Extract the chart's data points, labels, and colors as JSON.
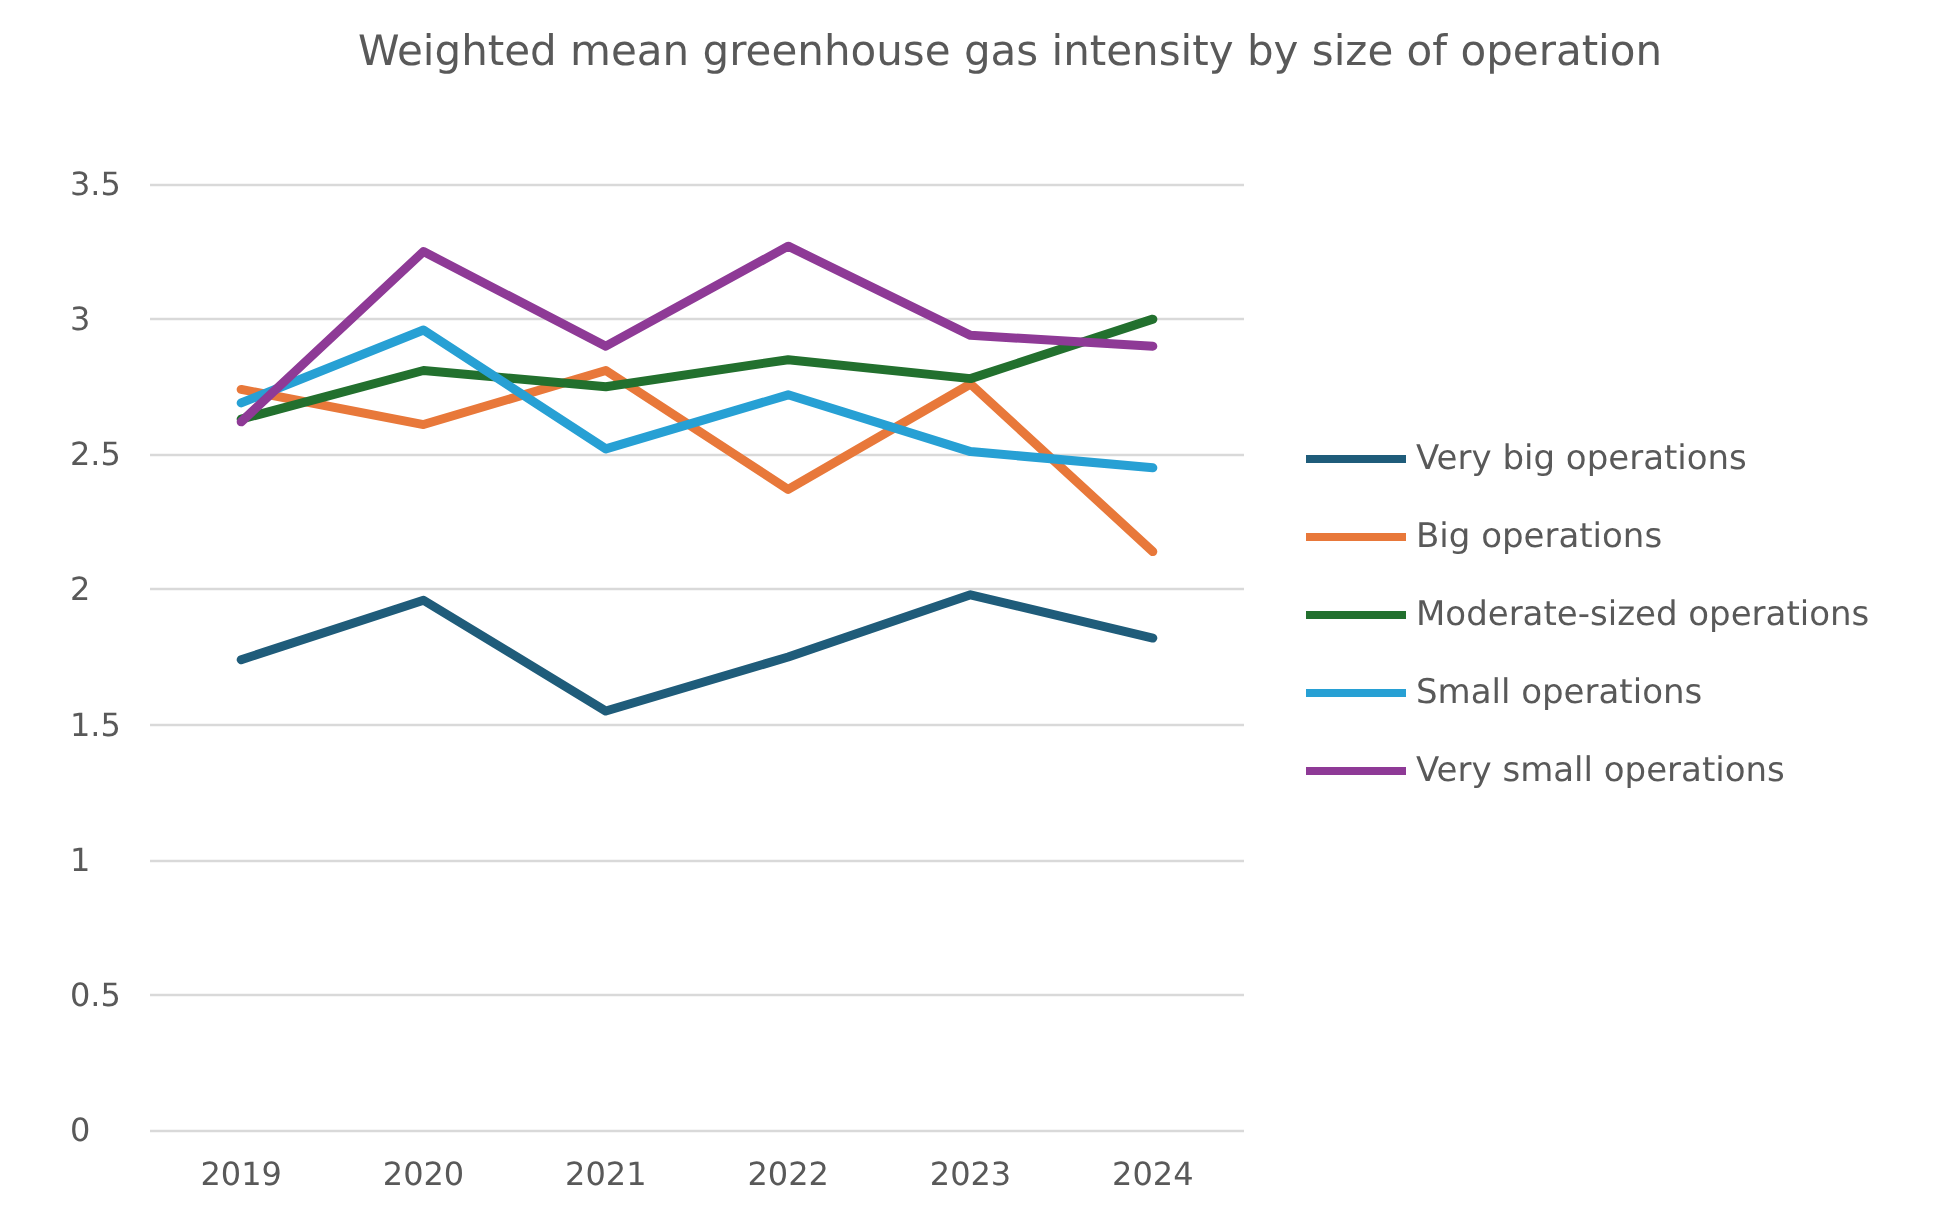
{
  "chart_data": {
    "type": "line",
    "title": "Weighted mean greenhouse gas intensity by size of operation",
    "categories": [
      "2019",
      "2020",
      "2021",
      "2022",
      "2023",
      "2024"
    ],
    "series": [
      {
        "name": "Very big operations",
        "color": "#1f5c7a",
        "values": [
          1.74,
          1.96,
          1.55,
          1.75,
          1.98,
          1.82
        ]
      },
      {
        "name": "Big operations",
        "color": "#e8783a",
        "values": [
          2.74,
          2.61,
          2.81,
          2.37,
          2.76,
          2.14
        ]
      },
      {
        "name": "Moderate-sized operations",
        "color": "#22702e",
        "values": [
          2.63,
          2.81,
          2.75,
          2.85,
          2.78,
          3.0
        ]
      },
      {
        "name": "Small operations",
        "color": "#27a0d4",
        "values": [
          2.69,
          2.96,
          2.52,
          2.72,
          2.51,
          2.45
        ]
      },
      {
        "name": "Very small operations",
        "color": "#8e3a96",
        "values": [
          2.62,
          3.25,
          2.9,
          3.27,
          2.94,
          2.9
        ]
      }
    ],
    "ylim": [
      0,
      3.5
    ],
    "yticks": [
      0,
      0.5,
      1,
      1.5,
      2,
      2.5,
      3,
      3.5
    ],
    "grid": "y",
    "legend": "right",
    "marker": "none",
    "line_style": "solid"
  }
}
